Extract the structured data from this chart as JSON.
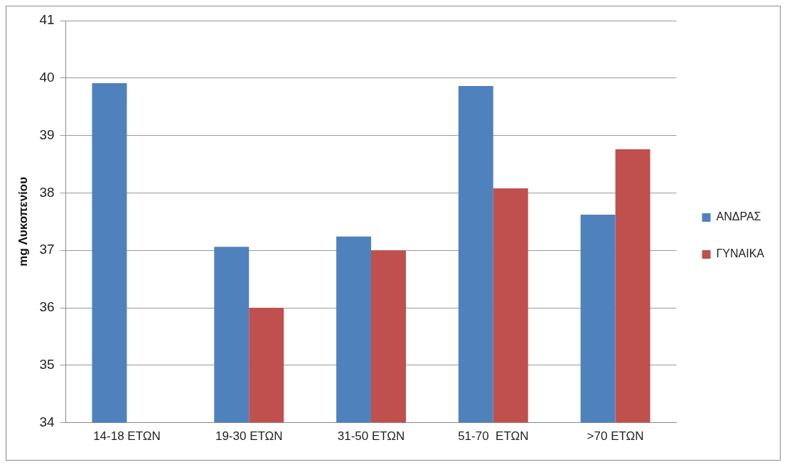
{
  "chart_data": {
    "type": "bar",
    "ylabel": "mg Λυκοπενίου",
    "categories": [
      "14-18 ΕΤΩΝ",
      "19-30 ΕΤΩΝ",
      "31-50 ΕΤΩΝ",
      "51-70  ΕΤΩΝ",
      ">70 ΕΤΩΝ"
    ],
    "series": [
      {
        "name": "ΑΝΔΡΑΣ",
        "color": "#4f81bd",
        "values": [
          39.91,
          37.06,
          37.24,
          39.86,
          37.62
        ]
      },
      {
        "name": "ΓΥΝΑΙΚΑ",
        "color": "#c0504d",
        "values": [
          null,
          36.0,
          37.0,
          38.08,
          38.76
        ]
      }
    ],
    "ylim": [
      34,
      41
    ],
    "yticks": [
      34,
      35,
      36,
      37,
      38,
      39,
      40,
      41
    ],
    "grid": "y",
    "legend": "right"
  }
}
